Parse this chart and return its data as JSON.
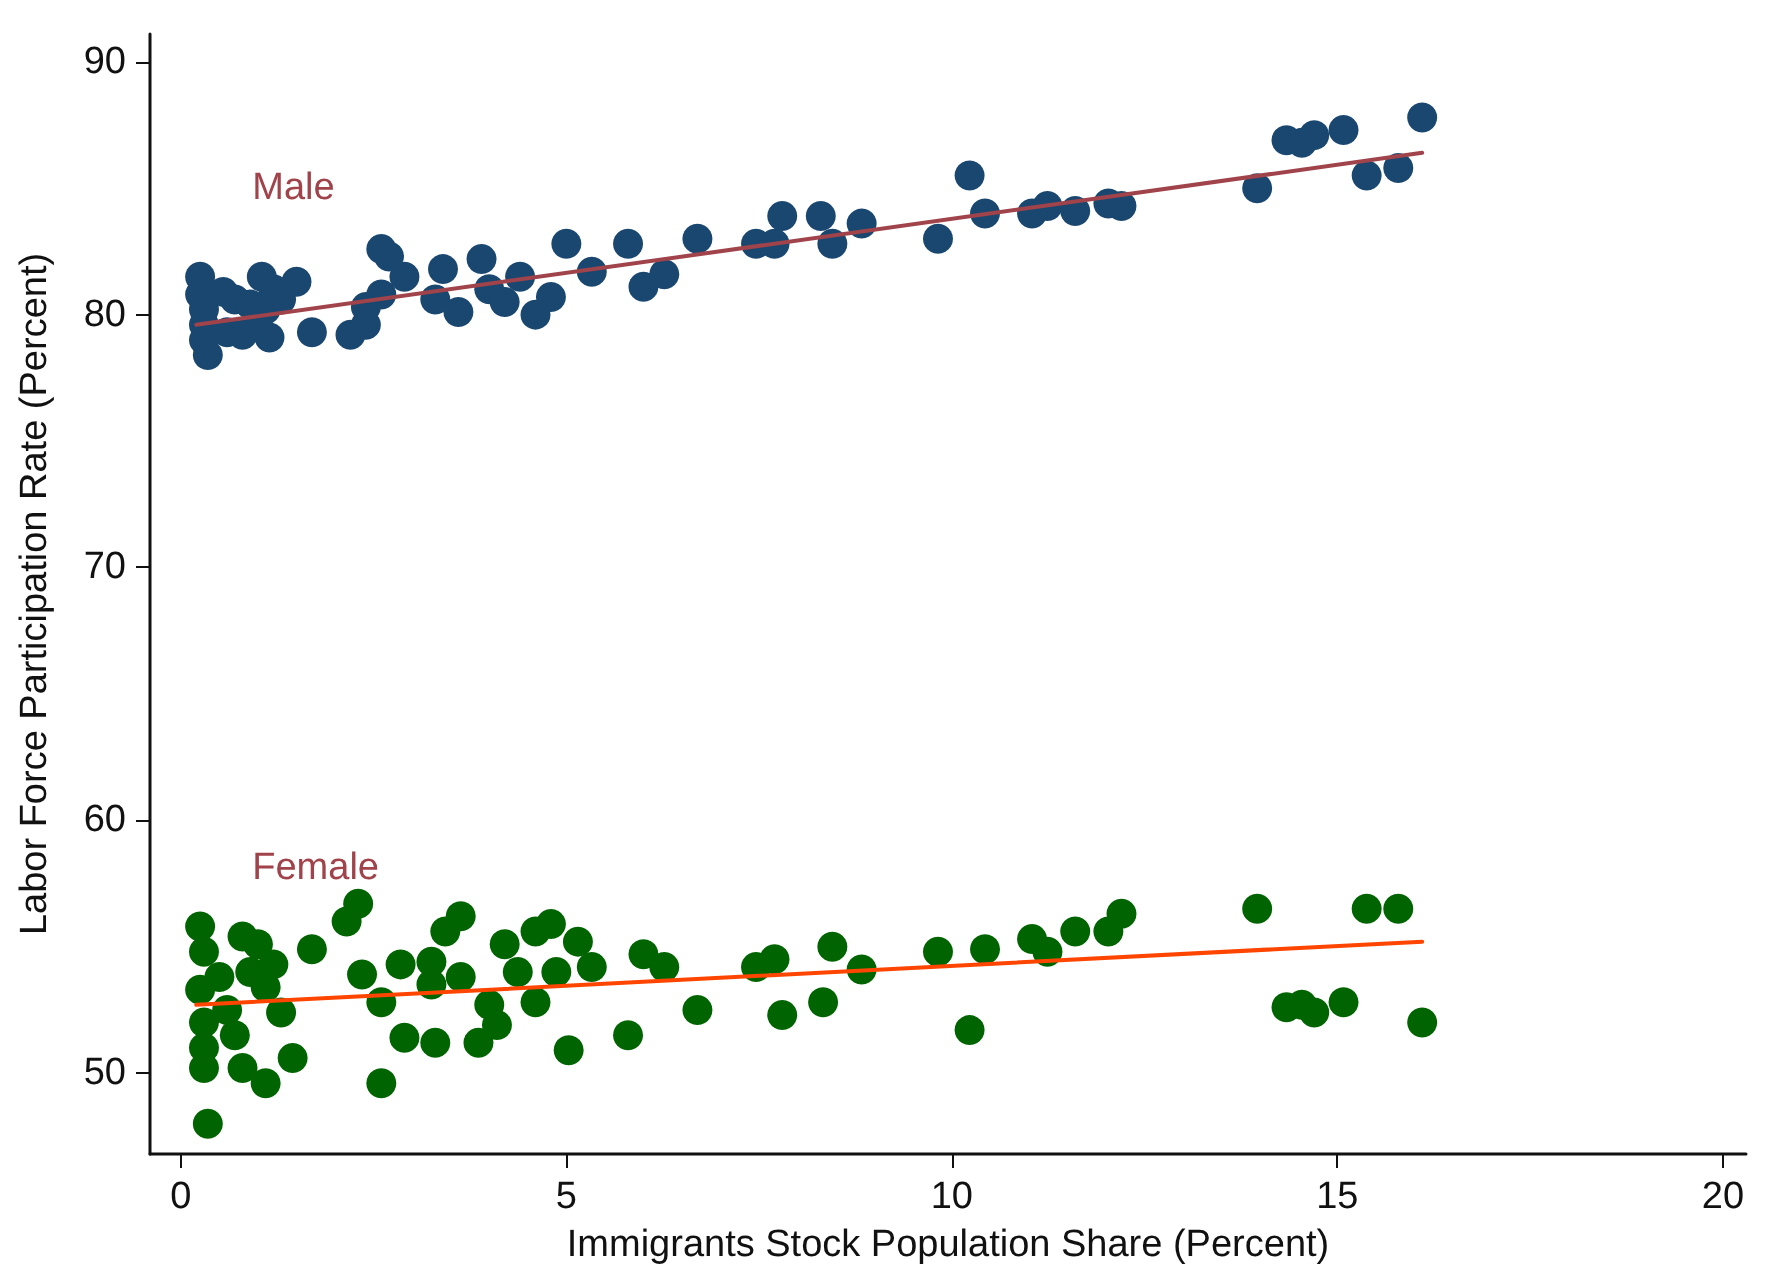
{
  "chart_data": {
    "type": "scatter",
    "xlabel": "Immigrants Stock Population Share (Percent)",
    "ylabel": "Labor Force Participation Rate (Percent)",
    "xlim": [
      -0.4,
      20.3
    ],
    "xticks": [
      0,
      5,
      10,
      15,
      20
    ],
    "ylim": [
      46.8,
      91.1
    ],
    "yticks": [
      50,
      60,
      70,
      80,
      90
    ],
    "grid": false,
    "legend": false,
    "series": [
      {
        "name": "Male",
        "color": "#1a476f",
        "marker": "circle",
        "x": [
          0.25,
          0.25,
          0.3,
          0.3,
          0.3,
          0.35,
          0.55,
          0.6,
          0.7,
          0.8,
          0.9,
          1.0,
          1.05,
          1.1,
          1.15,
          1.2,
          1.3,
          1.5,
          1.7,
          2.2,
          2.4,
          2.4,
          2.6,
          2.6,
          2.7,
          2.9,
          3.3,
          3.4,
          3.6,
          3.9,
          4.0,
          4.2,
          4.4,
          4.6,
          4.8,
          5.0,
          5.33,
          5.8,
          6.0,
          6.27,
          6.7,
          7.46,
          7.7,
          7.8,
          8.3,
          8.45,
          8.83,
          9.82,
          10.23,
          10.43,
          11.04,
          11.24,
          11.6,
          12.03,
          12.2,
          13.96,
          14.34,
          14.54,
          14.7,
          15.08,
          15.38,
          15.79,
          16.1
        ],
        "values": [
          81.5,
          80.8,
          80.2,
          79.6,
          79.0,
          78.4,
          80.9,
          79.3,
          80.6,
          79.2,
          80.4,
          79.6,
          81.5,
          80.2,
          79.1,
          81.0,
          80.6,
          81.3,
          79.3,
          79.2,
          79.6,
          80.3,
          80.8,
          82.6,
          82.3,
          81.5,
          80.6,
          81.8,
          80.1,
          82.2,
          81.0,
          80.5,
          81.5,
          80.0,
          80.7,
          82.8,
          81.7,
          82.8,
          81.1,
          81.6,
          83.0,
          82.8,
          82.8,
          83.9,
          83.9,
          82.8,
          83.6,
          83.0,
          85.5,
          84.0,
          84.0,
          84.3,
          84.1,
          84.4,
          84.3,
          85.0,
          86.9,
          86.8,
          87.1,
          87.3,
          85.5,
          85.8,
          87.8
        ]
      },
      {
        "type": "line",
        "color": "#a0434b",
        "marker": "none",
        "x": [
          0.2,
          16.1
        ],
        "values": [
          79.6,
          86.4
        ]
      },
      {
        "name": "Female",
        "color": "#006400",
        "marker": "circle",
        "x": [
          0.25,
          0.3,
          0.25,
          0.3,
          0.3,
          0.3,
          0.35,
          0.5,
          0.6,
          0.7,
          0.8,
          0.8,
          0.9,
          1.0,
          1.1,
          1.2,
          1.3,
          1.45,
          1.1,
          1.7,
          2.3,
          2.15,
          2.35,
          2.6,
          2.6,
          2.9,
          2.85,
          3.25,
          3.25,
          3.3,
          3.43,
          3.63,
          3.63,
          3.86,
          4.0,
          4.1,
          4.2,
          4.37,
          4.6,
          4.8,
          4.6,
          4.87,
          5.03,
          5.15,
          5.33,
          5.8,
          6.0,
          6.27,
          6.7,
          7.46,
          7.7,
          7.8,
          8.33,
          8.45,
          8.83,
          9.82,
          10.23,
          10.43,
          11.04,
          11.24,
          11.6,
          12.03,
          12.2,
          13.96,
          14.34,
          14.54,
          14.7,
          15.08,
          15.38,
          15.79,
          16.1
        ],
        "values": [
          55.8,
          54.8,
          53.3,
          52.0,
          51.0,
          50.2,
          48.0,
          53.8,
          52.5,
          51.5,
          50.2,
          55.4,
          54.0,
          55.1,
          53.4,
          54.3,
          52.4,
          50.6,
          49.6,
          54.9,
          56.7,
          56.0,
          53.9,
          52.8,
          49.6,
          51.4,
          54.3,
          54.4,
          53.5,
          51.2,
          55.6,
          56.2,
          53.8,
          51.2,
          52.7,
          51.9,
          55.1,
          54.0,
          55.6,
          55.9,
          52.8,
          54.0,
          50.9,
          55.2,
          54.2,
          51.5,
          54.7,
          54.2,
          52.5,
          54.2,
          54.5,
          52.3,
          52.8,
          55.0,
          54.1,
          54.8,
          51.7,
          54.9,
          55.3,
          54.8,
          55.6,
          55.6,
          56.3,
          56.5,
          52.6,
          52.7,
          52.4,
          52.8,
          56.5,
          56.5,
          52.0
        ]
      },
      {
        "type": "line",
        "color": "#ff4500",
        "marker": "none",
        "x": [
          0.2,
          16.1
        ],
        "values": [
          52.7,
          55.2
        ]
      }
    ]
  }
}
